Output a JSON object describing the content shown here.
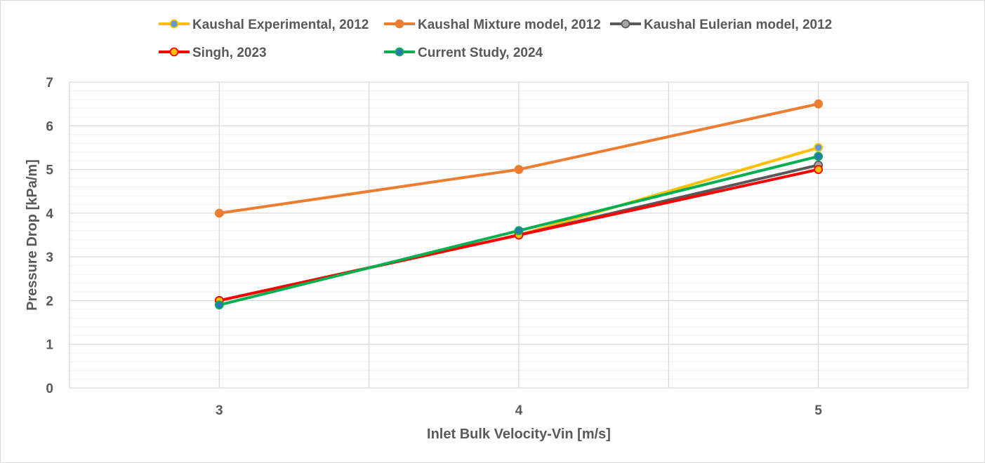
{
  "chart_data": {
    "type": "line",
    "title": "",
    "xlabel": "Inlet Bulk Velocity-Vin [m/s]",
    "ylabel": "Pressure Drop [kPa/m]",
    "x": [
      3,
      4,
      5
    ],
    "xlim": [
      2.5,
      5.5
    ],
    "ylim": [
      0,
      7
    ],
    "y_ticks": [
      0,
      1,
      2,
      3,
      4,
      5,
      6,
      7
    ],
    "x_ticks": [
      3,
      4,
      5
    ],
    "grid": true,
    "legend_position": "top",
    "series": [
      {
        "name": "Kaushal Experimental, 2012",
        "values": [
          2.0,
          3.5,
          5.5
        ],
        "line_color": "#FFC000",
        "marker_fill": "#5B9BD5",
        "marker_edge": "#FFC000"
      },
      {
        "name": "Kaushal Mixture model, 2012",
        "values": [
          4.0,
          5.0,
          6.5
        ],
        "line_color": "#ED7D31",
        "marker_fill": "#ED7D31",
        "marker_edge": "#ED7D31"
      },
      {
        "name": "Kaushal Eulerian model, 2012",
        "values": [
          2.0,
          3.5,
          5.1
        ],
        "line_color": "#595959",
        "marker_fill": "#A5A5A5",
        "marker_edge": "#595959"
      },
      {
        "name": "Singh, 2023",
        "values": [
          2.0,
          3.5,
          5.0
        ],
        "line_color": "#FF0000",
        "marker_fill": "#FFC000",
        "marker_edge": "#FF0000"
      },
      {
        "name": "Current Study, 2024",
        "values": [
          1.9,
          3.6,
          5.3
        ],
        "line_color": "#00B050",
        "marker_fill": "#2E75B6",
        "marker_edge": "#00B050"
      }
    ]
  }
}
